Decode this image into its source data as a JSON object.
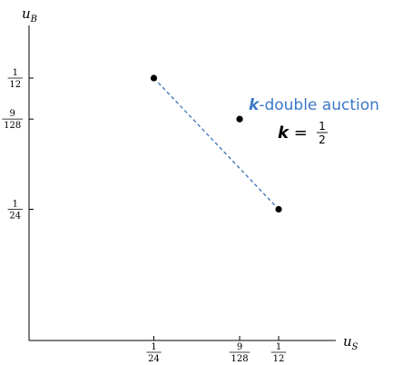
{
  "chart_data": {
    "type": "scatter",
    "xlabel": "u_S",
    "ylabel": "u_B",
    "xlim": [
      0,
      0.095
    ],
    "ylim": [
      0,
      0.095
    ],
    "grid": false,
    "x_ticks": [
      {
        "value": 0.041666667,
        "num": "1",
        "den": "24"
      },
      {
        "value": 0.0703125,
        "num": "9",
        "den": "128"
      },
      {
        "value": 0.083333333,
        "num": "1",
        "den": "12"
      }
    ],
    "y_ticks": [
      {
        "value": 0.083333333,
        "num": "1",
        "den": "12"
      },
      {
        "value": 0.0703125,
        "num": "9",
        "den": "128"
      },
      {
        "value": 0.041666667,
        "num": "1",
        "den": "24"
      }
    ],
    "points": [
      {
        "x": 0.041666667,
        "y": 0.083333333
      },
      {
        "x": 0.083333333,
        "y": 0.041666667
      },
      {
        "x": 0.0703125,
        "y": 0.0703125
      }
    ],
    "frontier_line": {
      "from": [
        0.041666667,
        0.083333333
      ],
      "to": [
        0.083333333,
        0.041666667
      ],
      "color": "#4a7ab8",
      "style": "dashed"
    },
    "annotation": {
      "line1_var": "k",
      "line1_text": "-double auction",
      "line2_var": "k",
      "line2_eq": "=",
      "line2_num": "1",
      "line2_den": "2",
      "color_highlight": "#3b78c9",
      "color_text": "#000000"
    }
  }
}
